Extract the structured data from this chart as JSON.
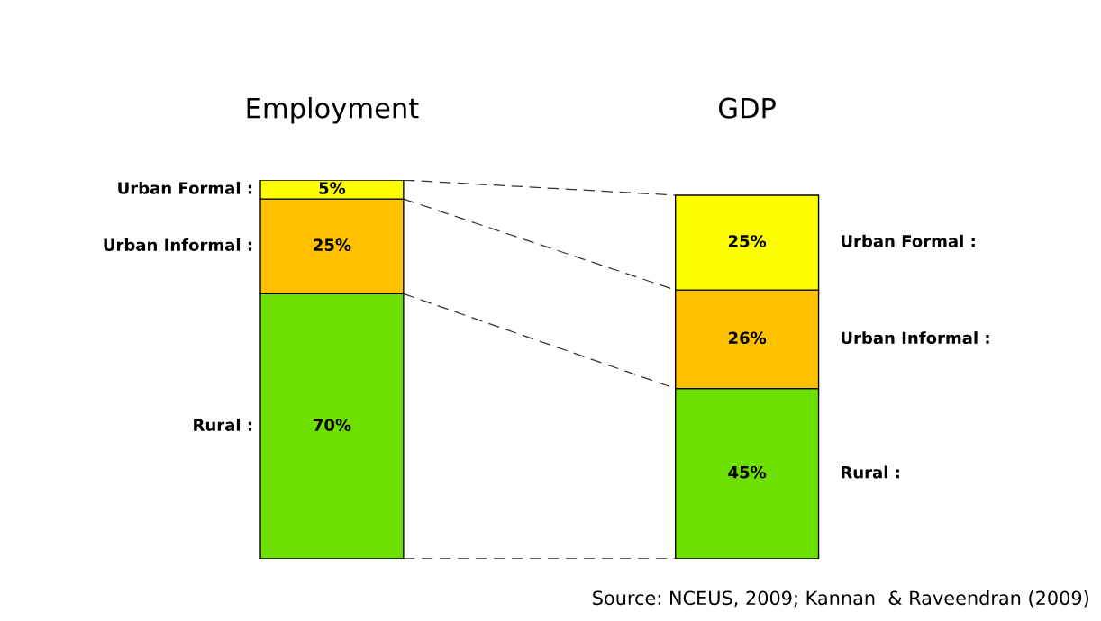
{
  "chart_data": {
    "type": "bar",
    "stacked": true,
    "categories": [
      "Employment",
      "GDP"
    ],
    "series": [
      {
        "name": "Rural :",
        "color": "#6ee000",
        "values": [
          70,
          45
        ],
        "value_labels": [
          "70%",
          "45%"
        ]
      },
      {
        "name": "Urban Informal :",
        "color": "#ffc000",
        "values": [
          25,
          26
        ],
        "value_labels": [
          "25%",
          "26%"
        ]
      },
      {
        "name": "Urban Formal :",
        "color": "#ffff00",
        "values": [
          5,
          25
        ],
        "value_labels": [
          "5%",
          "25%"
        ]
      }
    ],
    "annotations": [
      "Source: NCEUS, 2009; Kannan  & Raveendran (2009)"
    ],
    "legend": false,
    "grid": false
  }
}
